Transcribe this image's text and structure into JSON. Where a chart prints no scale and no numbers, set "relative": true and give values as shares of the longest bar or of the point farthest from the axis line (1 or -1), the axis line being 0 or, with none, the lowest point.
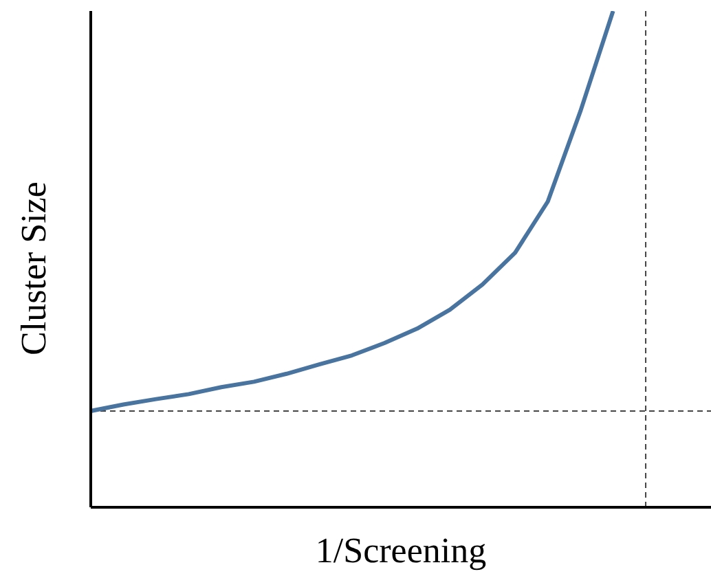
{
  "chart_data": {
    "type": "line",
    "xlabel": "1/Screening",
    "ylabel": "Cluster Size",
    "relative": true,
    "grid": false,
    "legend": false,
    "marker": "none",
    "line_style": "solid",
    "categories": [
      null,
      null,
      null,
      null,
      null,
      null,
      null,
      null,
      null,
      null,
      null,
      null,
      null,
      null,
      null,
      null,
      null,
      null,
      null,
      null
    ],
    "series": [
      {
        "color": "#4a74a0",
        "values": [
          0.194,
          0.207,
          0.218,
          0.228,
          0.242,
          0.253,
          0.269,
          0.288,
          0.306,
          0.331,
          0.36,
          0.398,
          0.449,
          0.513,
          0.616,
          0.798,
          1,
          null,
          null,
          null
        ]
      }
    ],
    "ref_lines": [
      {
        "axis": "y",
        "value": 0.194,
        "color": "#444444",
        "line_style": "dashed"
      }
    ]
  }
}
